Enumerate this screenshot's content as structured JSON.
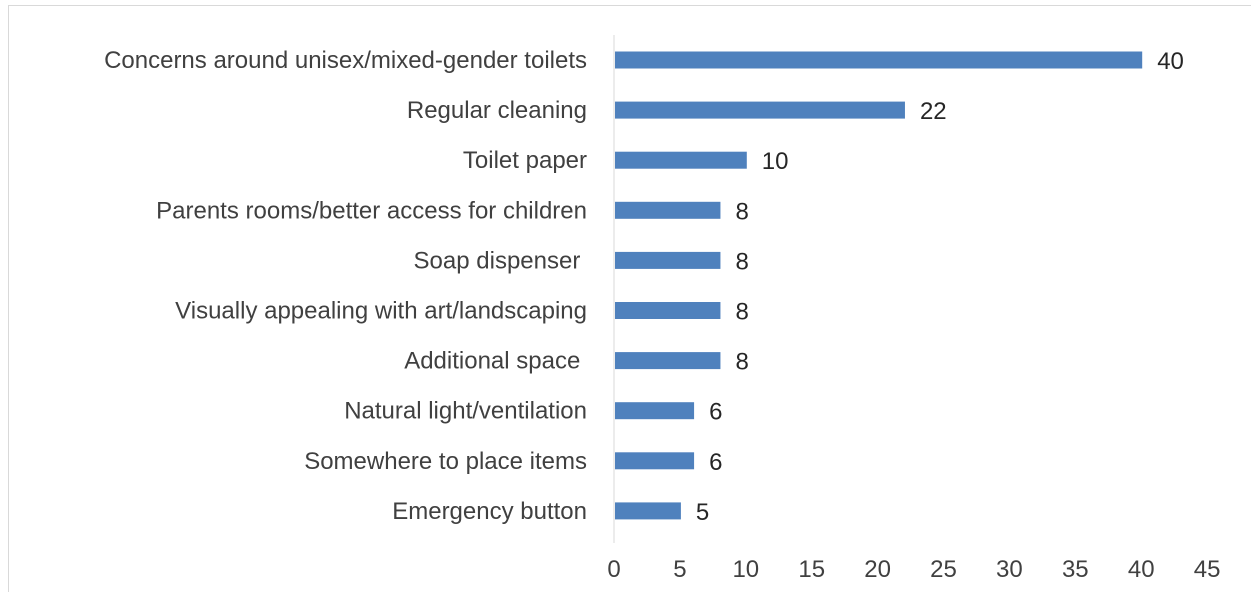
{
  "chart_data": {
    "type": "bar",
    "orientation": "horizontal",
    "categories": [
      "Concerns around unisex/mixed-gender toilets",
      "Regular cleaning",
      "Toilet paper",
      "Parents rooms/better access for children",
      "Soap dispenser ",
      "Visually appealing with art/landscaping",
      "Additional space ",
      "Natural light/ventilation",
      "Somewhere to place items",
      "Emergency button"
    ],
    "values": [
      40,
      22,
      10,
      8,
      8,
      8,
      8,
      6,
      6,
      5
    ],
    "xlim": [
      0,
      45
    ],
    "xticks": [
      0,
      5,
      10,
      15,
      20,
      25,
      30,
      35,
      40,
      45
    ],
    "title": "",
    "xlabel": "",
    "ylabel": "",
    "grid": false,
    "data_labels": true,
    "bar_color": "#4f81bd",
    "axis_color": "#d9d9d9"
  }
}
